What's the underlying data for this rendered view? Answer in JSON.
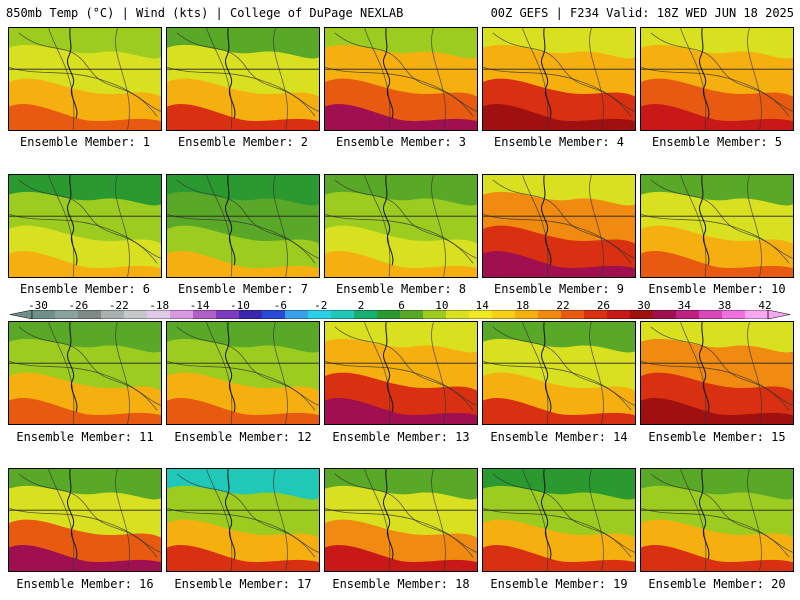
{
  "header": {
    "left": "850mb Temp (°C) | Wind (kts) | College of DuPage NEXLAB",
    "right": "00Z GEFS | F234 Valid: 18Z WED JUN 18 2025"
  },
  "colorbar": {
    "labels": [
      "-30",
      "-26",
      "-22",
      "-18",
      "-14",
      "-10",
      "-6",
      "-2",
      "2",
      "6",
      "10",
      "14",
      "18",
      "22",
      "26",
      "30",
      "34",
      "38",
      "42"
    ],
    "colors": [
      "#6f8f8a",
      "#8aa3a0",
      "#7f8a86",
      "#a8b0b0",
      "#c4c8c8",
      "#e0c8e8",
      "#d79ae0",
      "#b05ec8",
      "#7a3cc0",
      "#3c28b0",
      "#2a4ad8",
      "#3aa0e8",
      "#2ad0e8",
      "#20c8b8",
      "#18b070",
      "#2a9a30",
      "#5aa828",
      "#9ccc20",
      "#d8e020",
      "#f0e820",
      "#f8d018",
      "#f5b010",
      "#f08a10",
      "#e85a10",
      "#d83010",
      "#c81818",
      "#a01010",
      "#a01050",
      "#c02080",
      "#d848b8",
      "#f070e0",
      "#f8a8f0"
    ]
  },
  "panels": [
    {
      "caption": "Ensemble Member: 1",
      "palette": [
        "#9ccc20",
        "#d8e020",
        "#f5b010",
        "#e85a10"
      ]
    },
    {
      "caption": "Ensemble Member: 2",
      "palette": [
        "#5aa828",
        "#d8e020",
        "#f5b010",
        "#d83010"
      ]
    },
    {
      "caption": "Ensemble Member: 3",
      "palette": [
        "#9ccc20",
        "#f5b010",
        "#e85a10",
        "#a01050"
      ]
    },
    {
      "caption": "Ensemble Member: 4",
      "palette": [
        "#d8e020",
        "#f5b010",
        "#d83010",
        "#a01010"
      ]
    },
    {
      "caption": "Ensemble Member: 5",
      "palette": [
        "#d8e020",
        "#f5b010",
        "#e85a10",
        "#c81818"
      ]
    },
    {
      "caption": "Ensemble Member: 6",
      "palette": [
        "#2a9a30",
        "#9ccc20",
        "#d8e020",
        "#f5b010"
      ]
    },
    {
      "caption": "Ensemble Member: 7",
      "palette": [
        "#2a9a30",
        "#5aa828",
        "#9ccc20",
        "#f5b010"
      ]
    },
    {
      "caption": "Ensemble Member: 8",
      "palette": [
        "#5aa828",
        "#9ccc20",
        "#d8e020",
        "#f5b010"
      ]
    },
    {
      "caption": "Ensemble Member: 9",
      "palette": [
        "#d8e020",
        "#f08a10",
        "#d83010",
        "#a01050"
      ]
    },
    {
      "caption": "Ensemble Member: 10",
      "palette": [
        "#5aa828",
        "#d8e020",
        "#f5b010",
        "#e85a10"
      ]
    },
    {
      "caption": "Ensemble Member: 11",
      "palette": [
        "#5aa828",
        "#9ccc20",
        "#f5b010",
        "#e85a10"
      ]
    },
    {
      "caption": "Ensemble Member: 12",
      "palette": [
        "#5aa828",
        "#9ccc20",
        "#f5b010",
        "#e85a10"
      ]
    },
    {
      "caption": "Ensemble Member: 13",
      "palette": [
        "#d8e020",
        "#f5b010",
        "#d83010",
        "#a01050"
      ]
    },
    {
      "caption": "Ensemble Member: 14",
      "palette": [
        "#5aa828",
        "#d8e020",
        "#f5b010",
        "#d83010"
      ]
    },
    {
      "caption": "Ensemble Member: 15",
      "palette": [
        "#d8e020",
        "#f08a10",
        "#d83010",
        "#a01010"
      ]
    },
    {
      "caption": "Ensemble Member: 16",
      "palette": [
        "#5aa828",
        "#d8e020",
        "#e85a10",
        "#a01050"
      ]
    },
    {
      "caption": "Ensemble Member: 17",
      "palette": [
        "#20c8b8",
        "#9ccc20",
        "#f5b010",
        "#d83010"
      ]
    },
    {
      "caption": "Ensemble Member: 18",
      "palette": [
        "#5aa828",
        "#d8e020",
        "#f08a10",
        "#c81818"
      ]
    },
    {
      "caption": "Ensemble Member: 19",
      "palette": [
        "#2a9a30",
        "#9ccc20",
        "#f5b010",
        "#d83010"
      ]
    },
    {
      "caption": "Ensemble Member: 20",
      "palette": [
        "#5aa828",
        "#9ccc20",
        "#f5b010",
        "#d83010"
      ]
    }
  ]
}
